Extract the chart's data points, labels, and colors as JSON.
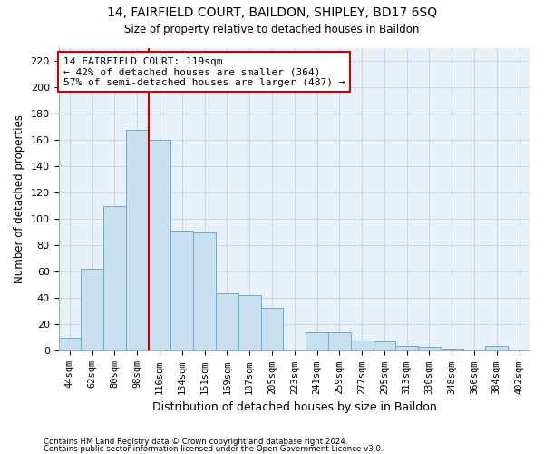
{
  "title1": "14, FAIRFIELD COURT, BAILDON, SHIPLEY, BD17 6SQ",
  "title2": "Size of property relative to detached houses in Baildon",
  "xlabel": "Distribution of detached houses by size in Baildon",
  "ylabel": "Number of detached properties",
  "categories": [
    "44sqm",
    "62sqm",
    "80sqm",
    "98sqm",
    "116sqm",
    "134sqm",
    "151sqm",
    "169sqm",
    "187sqm",
    "205sqm",
    "223sqm",
    "241sqm",
    "259sqm",
    "277sqm",
    "295sqm",
    "313sqm",
    "330sqm",
    "348sqm",
    "366sqm",
    "384sqm",
    "402sqm"
  ],
  "values": [
    10,
    62,
    110,
    168,
    160,
    91,
    90,
    44,
    42,
    33,
    0,
    14,
    14,
    8,
    7,
    4,
    3,
    2,
    0,
    4,
    0
  ],
  "bar_color": "#c8dff0",
  "bar_edge_color": "#6aaad4",
  "ylim": [
    0,
    230
  ],
  "yticks": [
    0,
    20,
    40,
    60,
    80,
    100,
    120,
    140,
    160,
    180,
    200,
    220
  ],
  "property_line_color": "#cc0000",
  "annotation_line1": "14 FAIRFIELD COURT: 119sqm",
  "annotation_line2": "← 42% of detached houses are smaller (364)",
  "annotation_line3": "57% of semi-detached houses are larger (487) →",
  "annotation_box_color": "#ffffff",
  "annotation_box_edge_color": "#cc0000",
  "footer1": "Contains HM Land Registry data © Crown copyright and database right 2024.",
  "footer2": "Contains public sector information licensed under the Open Government Licence v3.0.",
  "background_color": "#ffffff",
  "plot_bg_color": "#e8f0f8",
  "grid_color": "#c8d8e8"
}
